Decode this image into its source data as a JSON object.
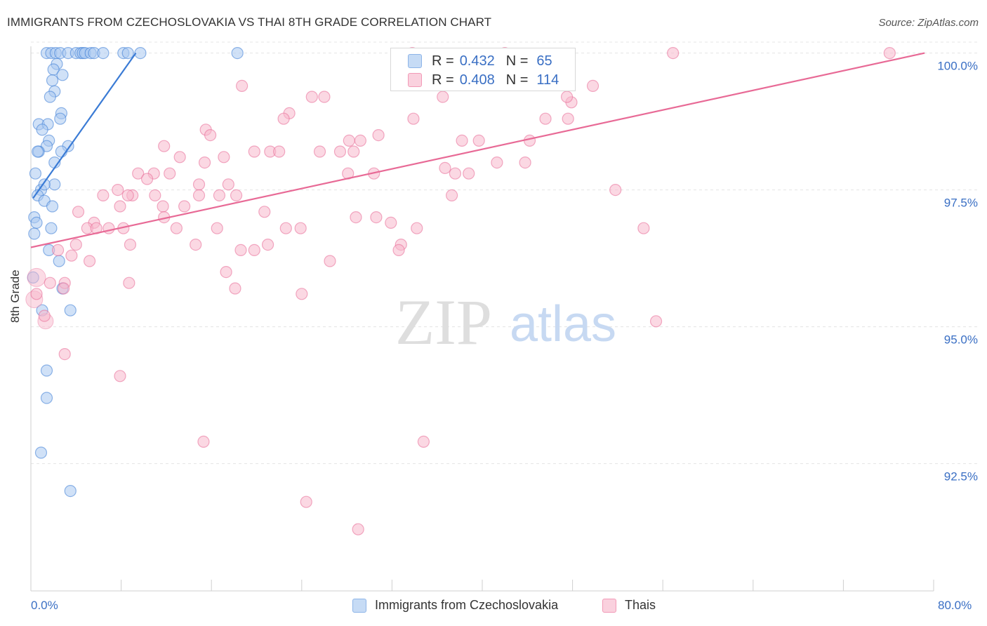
{
  "title": "IMMIGRANTS FROM CZECHOSLOVAKIA VS THAI 8TH GRADE CORRELATION CHART",
  "source": "Source: ZipAtlas.com",
  "watermark": {
    "zip": "ZIP",
    "atlas": "atlas"
  },
  "legend_top": {
    "rows": [
      {
        "r_key": "R =",
        "r_value": "0.432",
        "n_key": "N =",
        "n_value": "65",
        "color": "#a9c8f0"
      },
      {
        "r_key": "R =",
        "r_value": "0.408",
        "n_key": "N =",
        "n_value": "114",
        "color": "#f7b8cc"
      }
    ]
  },
  "legend_bottom": [
    {
      "label": "Immigrants from Czechoslovakia",
      "color": "#a9c8f0"
    },
    {
      "label": "Thais",
      "color": "#f7b8cc"
    }
  ],
  "chart_data": {
    "type": "scatter",
    "title": "IMMIGRANTS FROM CZECHOSLOVAKIA VS THAI 8TH GRADE CORRELATION CHART",
    "xlabel": "",
    "ylabel": "8th Grade",
    "xlim": [
      0,
      80
    ],
    "ylim": [
      90.2,
      100.2
    ],
    "x_tick_labels": [
      "0.0%",
      "80.0%"
    ],
    "y_ticks": [
      92.5,
      95.0,
      97.5,
      100.0
    ],
    "y_tick_labels": [
      "92.5%",
      "95.0%",
      "97.5%",
      "100.0%"
    ],
    "grid": true,
    "series": [
      {
        "name": "Immigrants from Czechoslovakia",
        "color": "#3a7bd5",
        "fill": "#a9c8f0",
        "trend": {
          "x": [
            0.2,
            9.3
          ],
          "y": [
            97.35,
            100.0
          ]
        },
        "points": [
          [
            1.4,
            100.0
          ],
          [
            1.8,
            100.0
          ],
          [
            2.2,
            100.0
          ],
          [
            2.6,
            100.0
          ],
          [
            3.3,
            100.0
          ],
          [
            4.0,
            100.0
          ],
          [
            4.4,
            100.0
          ],
          [
            4.6,
            100.0
          ],
          [
            4.8,
            100.0
          ],
          [
            5.3,
            100.0
          ],
          [
            5.6,
            100.0
          ],
          [
            6.4,
            100.0
          ],
          [
            8.2,
            100.0
          ],
          [
            8.6,
            100.0
          ],
          [
            9.7,
            100.0
          ],
          [
            18.3,
            100.0
          ],
          [
            2.3,
            99.8
          ],
          [
            2.0,
            99.7
          ],
          [
            2.8,
            99.6
          ],
          [
            1.9,
            99.5
          ],
          [
            2.1,
            99.3
          ],
          [
            1.7,
            99.2
          ],
          [
            2.7,
            98.9
          ],
          [
            2.6,
            98.8
          ],
          [
            0.7,
            98.7
          ],
          [
            1.5,
            98.7
          ],
          [
            1.0,
            98.6
          ],
          [
            1.6,
            98.4
          ],
          [
            1.4,
            98.3
          ],
          [
            3.3,
            98.3
          ],
          [
            0.7,
            98.2
          ],
          [
            2.7,
            98.2
          ],
          [
            0.6,
            98.2
          ],
          [
            2.1,
            98.0
          ],
          [
            0.4,
            97.8
          ],
          [
            0.9,
            97.5
          ],
          [
            0.6,
            97.4
          ],
          [
            2.1,
            97.6
          ],
          [
            1.2,
            97.6
          ],
          [
            1.2,
            97.3
          ],
          [
            1.9,
            97.2
          ],
          [
            0.3,
            97.0
          ],
          [
            0.5,
            96.9
          ],
          [
            1.8,
            96.8
          ],
          [
            0.3,
            96.7
          ],
          [
            1.6,
            96.4
          ],
          [
            2.5,
            96.2
          ],
          [
            0.2,
            95.9
          ],
          [
            2.8,
            95.7
          ],
          [
            1.0,
            95.3
          ],
          [
            3.5,
            95.3
          ],
          [
            1.4,
            94.2
          ],
          [
            1.4,
            93.7
          ],
          [
            0.9,
            92.7
          ],
          [
            3.5,
            92.0
          ]
        ]
      },
      {
        "name": "Thais",
        "color": "#e86a96",
        "fill": "#f7b8cc",
        "trend": {
          "x": [
            0.0,
            79.2
          ],
          "y": [
            96.45,
            100.0
          ]
        },
        "points": [
          [
            33.8,
            100.0
          ],
          [
            42.0,
            100.0
          ],
          [
            56.9,
            100.0
          ],
          [
            76.1,
            100.0
          ],
          [
            18.7,
            99.4
          ],
          [
            24.9,
            99.2
          ],
          [
            26.0,
            99.2
          ],
          [
            36.5,
            99.2
          ],
          [
            47.9,
            99.1
          ],
          [
            47.5,
            99.2
          ],
          [
            22.9,
            98.9
          ],
          [
            22.4,
            98.8
          ],
          [
            33.9,
            98.8
          ],
          [
            47.6,
            98.8
          ],
          [
            15.5,
            98.6
          ],
          [
            15.9,
            98.5
          ],
          [
            30.8,
            98.5
          ],
          [
            38.2,
            98.4
          ],
          [
            28.2,
            98.4
          ],
          [
            29.2,
            98.4
          ],
          [
            39.7,
            98.4
          ],
          [
            44.2,
            98.4
          ],
          [
            11.8,
            98.3
          ],
          [
            19.8,
            98.2
          ],
          [
            21.2,
            98.2
          ],
          [
            25.6,
            98.2
          ],
          [
            27.4,
            98.2
          ],
          [
            28.6,
            98.2
          ],
          [
            13.2,
            98.1
          ],
          [
            17.1,
            98.1
          ],
          [
            22.0,
            98.2
          ],
          [
            41.3,
            98.0
          ],
          [
            15.4,
            98.0
          ],
          [
            9.5,
            97.8
          ],
          [
            10.9,
            97.8
          ],
          [
            28.1,
            97.8
          ],
          [
            30.4,
            97.8
          ],
          [
            37.6,
            97.8
          ],
          [
            10.3,
            97.7
          ],
          [
            12.3,
            97.8
          ],
          [
            14.9,
            97.6
          ],
          [
            17.5,
            97.6
          ],
          [
            7.7,
            97.5
          ],
          [
            6.4,
            97.4
          ],
          [
            9.0,
            97.4
          ],
          [
            11.0,
            97.4
          ],
          [
            18.2,
            97.4
          ],
          [
            16.7,
            97.4
          ],
          [
            14.9,
            97.4
          ],
          [
            7.9,
            97.2
          ],
          [
            8.6,
            97.4
          ],
          [
            11.7,
            97.2
          ],
          [
            13.6,
            97.2
          ],
          [
            4.2,
            97.1
          ],
          [
            11.8,
            97.0
          ],
          [
            20.7,
            97.1
          ],
          [
            28.8,
            97.0
          ],
          [
            30.6,
            97.0
          ],
          [
            31.9,
            96.9
          ],
          [
            5.6,
            96.9
          ],
          [
            6.9,
            96.8
          ],
          [
            5.0,
            96.8
          ],
          [
            5.8,
            96.8
          ],
          [
            8.2,
            96.8
          ],
          [
            12.9,
            96.8
          ],
          [
            16.5,
            96.8
          ],
          [
            22.6,
            96.8
          ],
          [
            34.2,
            96.8
          ],
          [
            4.0,
            96.5
          ],
          [
            8.8,
            96.5
          ],
          [
            14.6,
            96.5
          ],
          [
            18.6,
            96.4
          ],
          [
            19.8,
            96.4
          ],
          [
            21.0,
            96.5
          ],
          [
            32.8,
            96.5
          ],
          [
            2.4,
            96.4
          ],
          [
            3.6,
            96.3
          ],
          [
            5.2,
            96.2
          ],
          [
            26.5,
            96.2
          ],
          [
            17.3,
            96.0
          ],
          [
            3.0,
            95.8
          ],
          [
            8.7,
            95.8
          ],
          [
            1.7,
            95.8
          ],
          [
            18.1,
            95.7
          ],
          [
            24.0,
            95.6
          ],
          [
            2.9,
            95.7
          ],
          [
            0.5,
            95.6
          ],
          [
            1.2,
            95.2
          ],
          [
            55.4,
            95.1
          ],
          [
            3.0,
            94.5
          ],
          [
            7.9,
            94.1
          ],
          [
            15.3,
            92.9
          ],
          [
            34.8,
            92.9
          ],
          [
            24.4,
            91.8
          ],
          [
            29.0,
            91.3
          ],
          [
            51.8,
            97.5
          ],
          [
            45.6,
            98.8
          ],
          [
            49.8,
            99.4
          ],
          [
            54.3,
            96.8
          ],
          [
            36.7,
            97.9
          ],
          [
            38.8,
            97.8
          ],
          [
            23.9,
            96.8
          ],
          [
            32.6,
            96.4
          ],
          [
            37.3,
            97.4
          ],
          [
            43.8,
            98.0
          ]
        ]
      }
    ]
  }
}
